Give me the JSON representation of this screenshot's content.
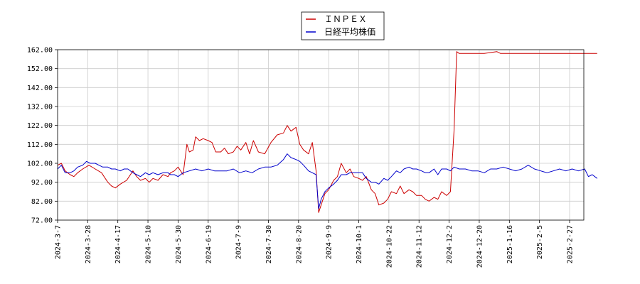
{
  "chart_data": {
    "type": "line",
    "title": "",
    "xlabel": "",
    "ylabel": "",
    "ylim": [
      72.0,
      162.0
    ],
    "y_ticks": [
      "72.00",
      "82.00",
      "92.00",
      "102.00",
      "112.00",
      "122.00",
      "132.00",
      "142.00",
      "152.00",
      "162.00"
    ],
    "x_ticks": [
      "2024-3-7",
      "2024-3-28",
      "2024-4-17",
      "2024-5-10",
      "2024-5-30",
      "2024-6-19",
      "2024-7-9",
      "2024-7-30",
      "2024-8-20",
      "2024-9-9",
      "2024-10-1",
      "2024-10-22",
      "2024-11-12",
      "2024-12-2",
      "2024-12-20",
      "2025-1-16",
      "2025-2-5",
      "2025-2-27"
    ],
    "grid": true,
    "legend_position": "top-center",
    "series": [
      {
        "name": "ＩＮＰＥＸ",
        "color": "#cc0000",
        "points": [
          [
            0,
            101
          ],
          [
            0.3,
            102
          ],
          [
            0.6,
            98
          ],
          [
            1,
            96
          ],
          [
            1.3,
            95
          ],
          [
            1.6,
            97
          ],
          [
            2,
            99
          ],
          [
            2.5,
            101
          ],
          [
            3,
            99
          ],
          [
            3.5,
            97
          ],
          [
            4,
            92
          ],
          [
            4.3,
            90
          ],
          [
            4.6,
            89
          ],
          [
            5,
            91
          ],
          [
            5.5,
            93
          ],
          [
            6,
            98
          ],
          [
            6.3,
            95
          ],
          [
            6.6,
            93
          ],
          [
            7,
            94
          ],
          [
            7.3,
            92
          ],
          [
            7.6,
            94
          ],
          [
            8,
            93
          ],
          [
            8.4,
            96
          ],
          [
            8.8,
            95
          ],
          [
            9,
            97
          ],
          [
            9.3,
            98
          ],
          [
            9.6,
            100
          ],
          [
            10,
            96
          ],
          [
            10.3,
            112
          ],
          [
            10.5,
            108
          ],
          [
            10.8,
            109
          ],
          [
            11,
            116
          ],
          [
            11.3,
            114
          ],
          [
            11.6,
            115
          ],
          [
            12,
            114
          ],
          [
            12.3,
            113
          ],
          [
            12.6,
            108
          ],
          [
            13,
            108
          ],
          [
            13.3,
            110
          ],
          [
            13.6,
            107
          ],
          [
            14,
            108
          ],
          [
            14.3,
            111
          ],
          [
            14.6,
            109
          ],
          [
            15,
            113
          ],
          [
            15.3,
            107
          ],
          [
            15.6,
            114
          ],
          [
            16,
            108
          ],
          [
            16.5,
            107
          ],
          [
            17,
            113
          ],
          [
            17.5,
            117
          ],
          [
            18,
            118
          ],
          [
            18.3,
            122
          ],
          [
            18.6,
            119
          ],
          [
            19,
            121
          ],
          [
            19.3,
            112
          ],
          [
            19.6,
            109
          ],
          [
            20,
            107
          ],
          [
            20.3,
            113
          ],
          [
            20.6,
            98
          ],
          [
            20.8,
            76
          ],
          [
            21,
            80
          ],
          [
            21.3,
            86
          ],
          [
            21.6,
            88
          ],
          [
            22,
            93
          ],
          [
            22.3,
            95
          ],
          [
            22.6,
            102
          ],
          [
            23,
            97
          ],
          [
            23.3,
            99
          ],
          [
            23.6,
            95
          ],
          [
            24,
            94
          ],
          [
            24.3,
            93
          ],
          [
            24.6,
            95
          ],
          [
            25,
            88
          ],
          [
            25.3,
            86
          ],
          [
            25.6,
            80
          ],
          [
            26,
            81
          ],
          [
            26.3,
            83
          ],
          [
            26.6,
            87
          ],
          [
            27,
            86
          ],
          [
            27.3,
            90
          ],
          [
            27.6,
            86
          ],
          [
            28,
            88
          ],
          [
            28.3,
            87
          ],
          [
            28.6,
            85
          ],
          [
            29,
            85
          ],
          [
            29.3,
            83
          ],
          [
            29.6,
            82
          ],
          [
            30,
            84
          ],
          [
            30.3,
            83
          ],
          [
            30.6,
            87
          ],
          [
            31,
            85
          ],
          [
            31.3,
            87
          ],
          [
            31.6,
            120
          ],
          [
            31.8,
            161
          ],
          [
            32,
            160
          ],
          [
            33,
            160
          ],
          [
            34,
            160
          ],
          [
            35,
            161
          ],
          [
            35.3,
            160
          ],
          [
            35.6,
            160
          ],
          [
            36,
            160
          ],
          [
            37,
            160
          ],
          [
            38,
            160
          ],
          [
            39,
            160
          ],
          [
            40,
            160
          ],
          [
            41,
            160
          ],
          [
            42,
            160
          ],
          [
            43,
            160
          ]
        ]
      },
      {
        "name": "日経平均株価",
        "color": "#0000cc",
        "points": [
          [
            0,
            99
          ],
          [
            0.3,
            101
          ],
          [
            0.6,
            97
          ],
          [
            1,
            97
          ],
          [
            1.3,
            98
          ],
          [
            1.6,
            100
          ],
          [
            2,
            101
          ],
          [
            2.3,
            103
          ],
          [
            2.6,
            102
          ],
          [
            3,
            102
          ],
          [
            3.3,
            101
          ],
          [
            3.6,
            100
          ],
          [
            4,
            100
          ],
          [
            4.3,
            99
          ],
          [
            4.6,
            99
          ],
          [
            5,
            98
          ],
          [
            5.3,
            99
          ],
          [
            5.6,
            99
          ],
          [
            6,
            97
          ],
          [
            6.3,
            96
          ],
          [
            6.6,
            95
          ],
          [
            7,
            97
          ],
          [
            7.3,
            96
          ],
          [
            7.6,
            97
          ],
          [
            8,
            96
          ],
          [
            8.4,
            97
          ],
          [
            8.8,
            97
          ],
          [
            9,
            96
          ],
          [
            9.3,
            96
          ],
          [
            9.6,
            95
          ],
          [
            10,
            97
          ],
          [
            10.5,
            98
          ],
          [
            11,
            99
          ],
          [
            11.5,
            98
          ],
          [
            12,
            99
          ],
          [
            12.5,
            98
          ],
          [
            13,
            98
          ],
          [
            13.5,
            98
          ],
          [
            14,
            99
          ],
          [
            14.5,
            97
          ],
          [
            15,
            98
          ],
          [
            15.5,
            97
          ],
          [
            16,
            99
          ],
          [
            16.5,
            100
          ],
          [
            17,
            100
          ],
          [
            17.5,
            101
          ],
          [
            18,
            104
          ],
          [
            18.3,
            107
          ],
          [
            18.6,
            105
          ],
          [
            19,
            104
          ],
          [
            19.3,
            103
          ],
          [
            19.6,
            101
          ],
          [
            20,
            98
          ],
          [
            20.3,
            97
          ],
          [
            20.6,
            96
          ],
          [
            20.8,
            78
          ],
          [
            21,
            83
          ],
          [
            21.3,
            87
          ],
          [
            21.6,
            89
          ],
          [
            22,
            91
          ],
          [
            22.3,
            93
          ],
          [
            22.6,
            96
          ],
          [
            23,
            96
          ],
          [
            23.3,
            97
          ],
          [
            23.6,
            97
          ],
          [
            24,
            97
          ],
          [
            24.3,
            97
          ],
          [
            24.6,
            94
          ],
          [
            25,
            92
          ],
          [
            25.3,
            92
          ],
          [
            25.6,
            91
          ],
          [
            26,
            94
          ],
          [
            26.3,
            93
          ],
          [
            26.6,
            95
          ],
          [
            27,
            98
          ],
          [
            27.3,
            97
          ],
          [
            27.6,
            99
          ],
          [
            28,
            100
          ],
          [
            28.3,
            99
          ],
          [
            28.6,
            99
          ],
          [
            29,
            98
          ],
          [
            29.3,
            97
          ],
          [
            29.6,
            97
          ],
          [
            30,
            99
          ],
          [
            30.3,
            96
          ],
          [
            30.6,
            99
          ],
          [
            31,
            99
          ],
          [
            31.3,
            98
          ],
          [
            31.6,
            100
          ],
          [
            32,
            99
          ],
          [
            32.5,
            99
          ],
          [
            33,
            98
          ],
          [
            33.5,
            98
          ],
          [
            34,
            97
          ],
          [
            34.5,
            99
          ],
          [
            35,
            99
          ],
          [
            35.5,
            100
          ],
          [
            36,
            99
          ],
          [
            36.5,
            98
          ],
          [
            37,
            99
          ],
          [
            37.5,
            101
          ],
          [
            38,
            99
          ],
          [
            38.5,
            98
          ],
          [
            39,
            97
          ],
          [
            39.5,
            98
          ],
          [
            40,
            99
          ],
          [
            40.5,
            98
          ],
          [
            41,
            99
          ],
          [
            41.5,
            98
          ],
          [
            42,
            99
          ],
          [
            42.3,
            95
          ],
          [
            42.6,
            96
          ],
          [
            43,
            94
          ]
        ]
      }
    ]
  }
}
